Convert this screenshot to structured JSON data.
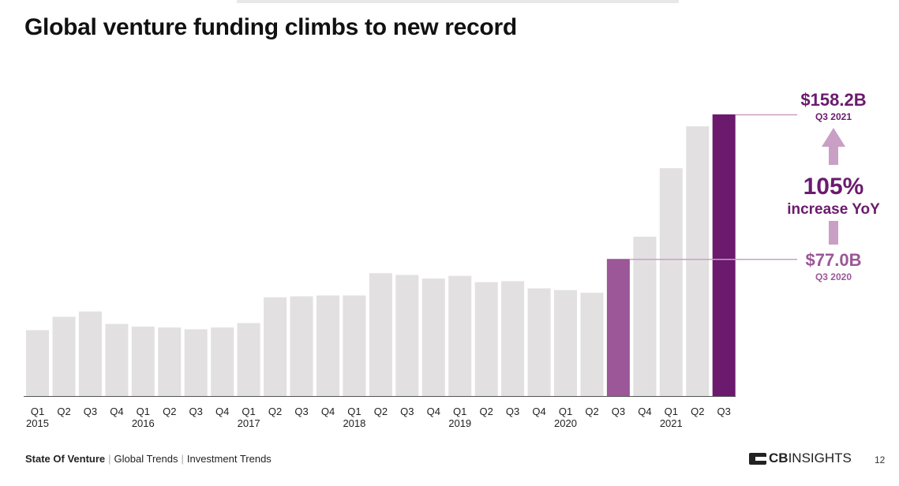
{
  "title": "Global venture funding climbs to new record",
  "chart_data": {
    "type": "bar",
    "title": "Global venture funding climbs to new record",
    "unit": "$B",
    "quarters": [
      "Q1",
      "Q2",
      "Q3",
      "Q4",
      "Q1",
      "Q2",
      "Q3",
      "Q4",
      "Q1",
      "Q2",
      "Q3",
      "Q4",
      "Q1",
      "Q2",
      "Q3",
      "Q4",
      "Q1",
      "Q2",
      "Q3",
      "Q4",
      "Q1",
      "Q2",
      "Q3",
      "Q4",
      "Q1",
      "Q2",
      "Q3"
    ],
    "years": [
      "2015",
      "",
      "",
      "",
      "2016",
      "",
      "",
      "",
      "2017",
      "",
      "",
      "",
      "2018",
      "",
      "",
      "",
      "2019",
      "",
      "",
      "",
      "2020",
      "",
      "",
      "",
      "2021",
      "",
      ""
    ],
    "values": [
      37.0,
      44.5,
      47.5,
      40.5,
      39.0,
      38.5,
      37.5,
      38.5,
      41.0,
      55.5,
      56.0,
      56.5,
      56.5,
      69.0,
      68.0,
      66.0,
      67.5,
      64.0,
      64.5,
      60.5,
      59.5,
      58.0,
      77.0,
      89.5,
      128.0,
      151.5,
      158.2
    ],
    "highlight": [
      {
        "index": 22,
        "color": "#9b5797"
      },
      {
        "index": 26,
        "color": "#6b1a6e"
      }
    ],
    "base_color": "#e2e0e1",
    "ylim": [
      0,
      165
    ],
    "annotations": {
      "high_value": "$158.2B",
      "high_period": "Q3 2021",
      "low_value": "$77.0B",
      "low_period": "Q3 2020",
      "growth_pct": "105%",
      "growth_text": "increase YoY"
    },
    "colors": {
      "dark_purple": "#6b1a6e",
      "mid_purple": "#9b5797",
      "light_purple": "#c99fc6",
      "axis": "#555555"
    }
  },
  "footer": {
    "report": "State Of Venture",
    "section1": "Global Trends",
    "section2": "Investment Trends",
    "separator": "|"
  },
  "logo": {
    "brand_bold": "CB",
    "brand_light": "INSIGHTS"
  },
  "page_number": "12"
}
